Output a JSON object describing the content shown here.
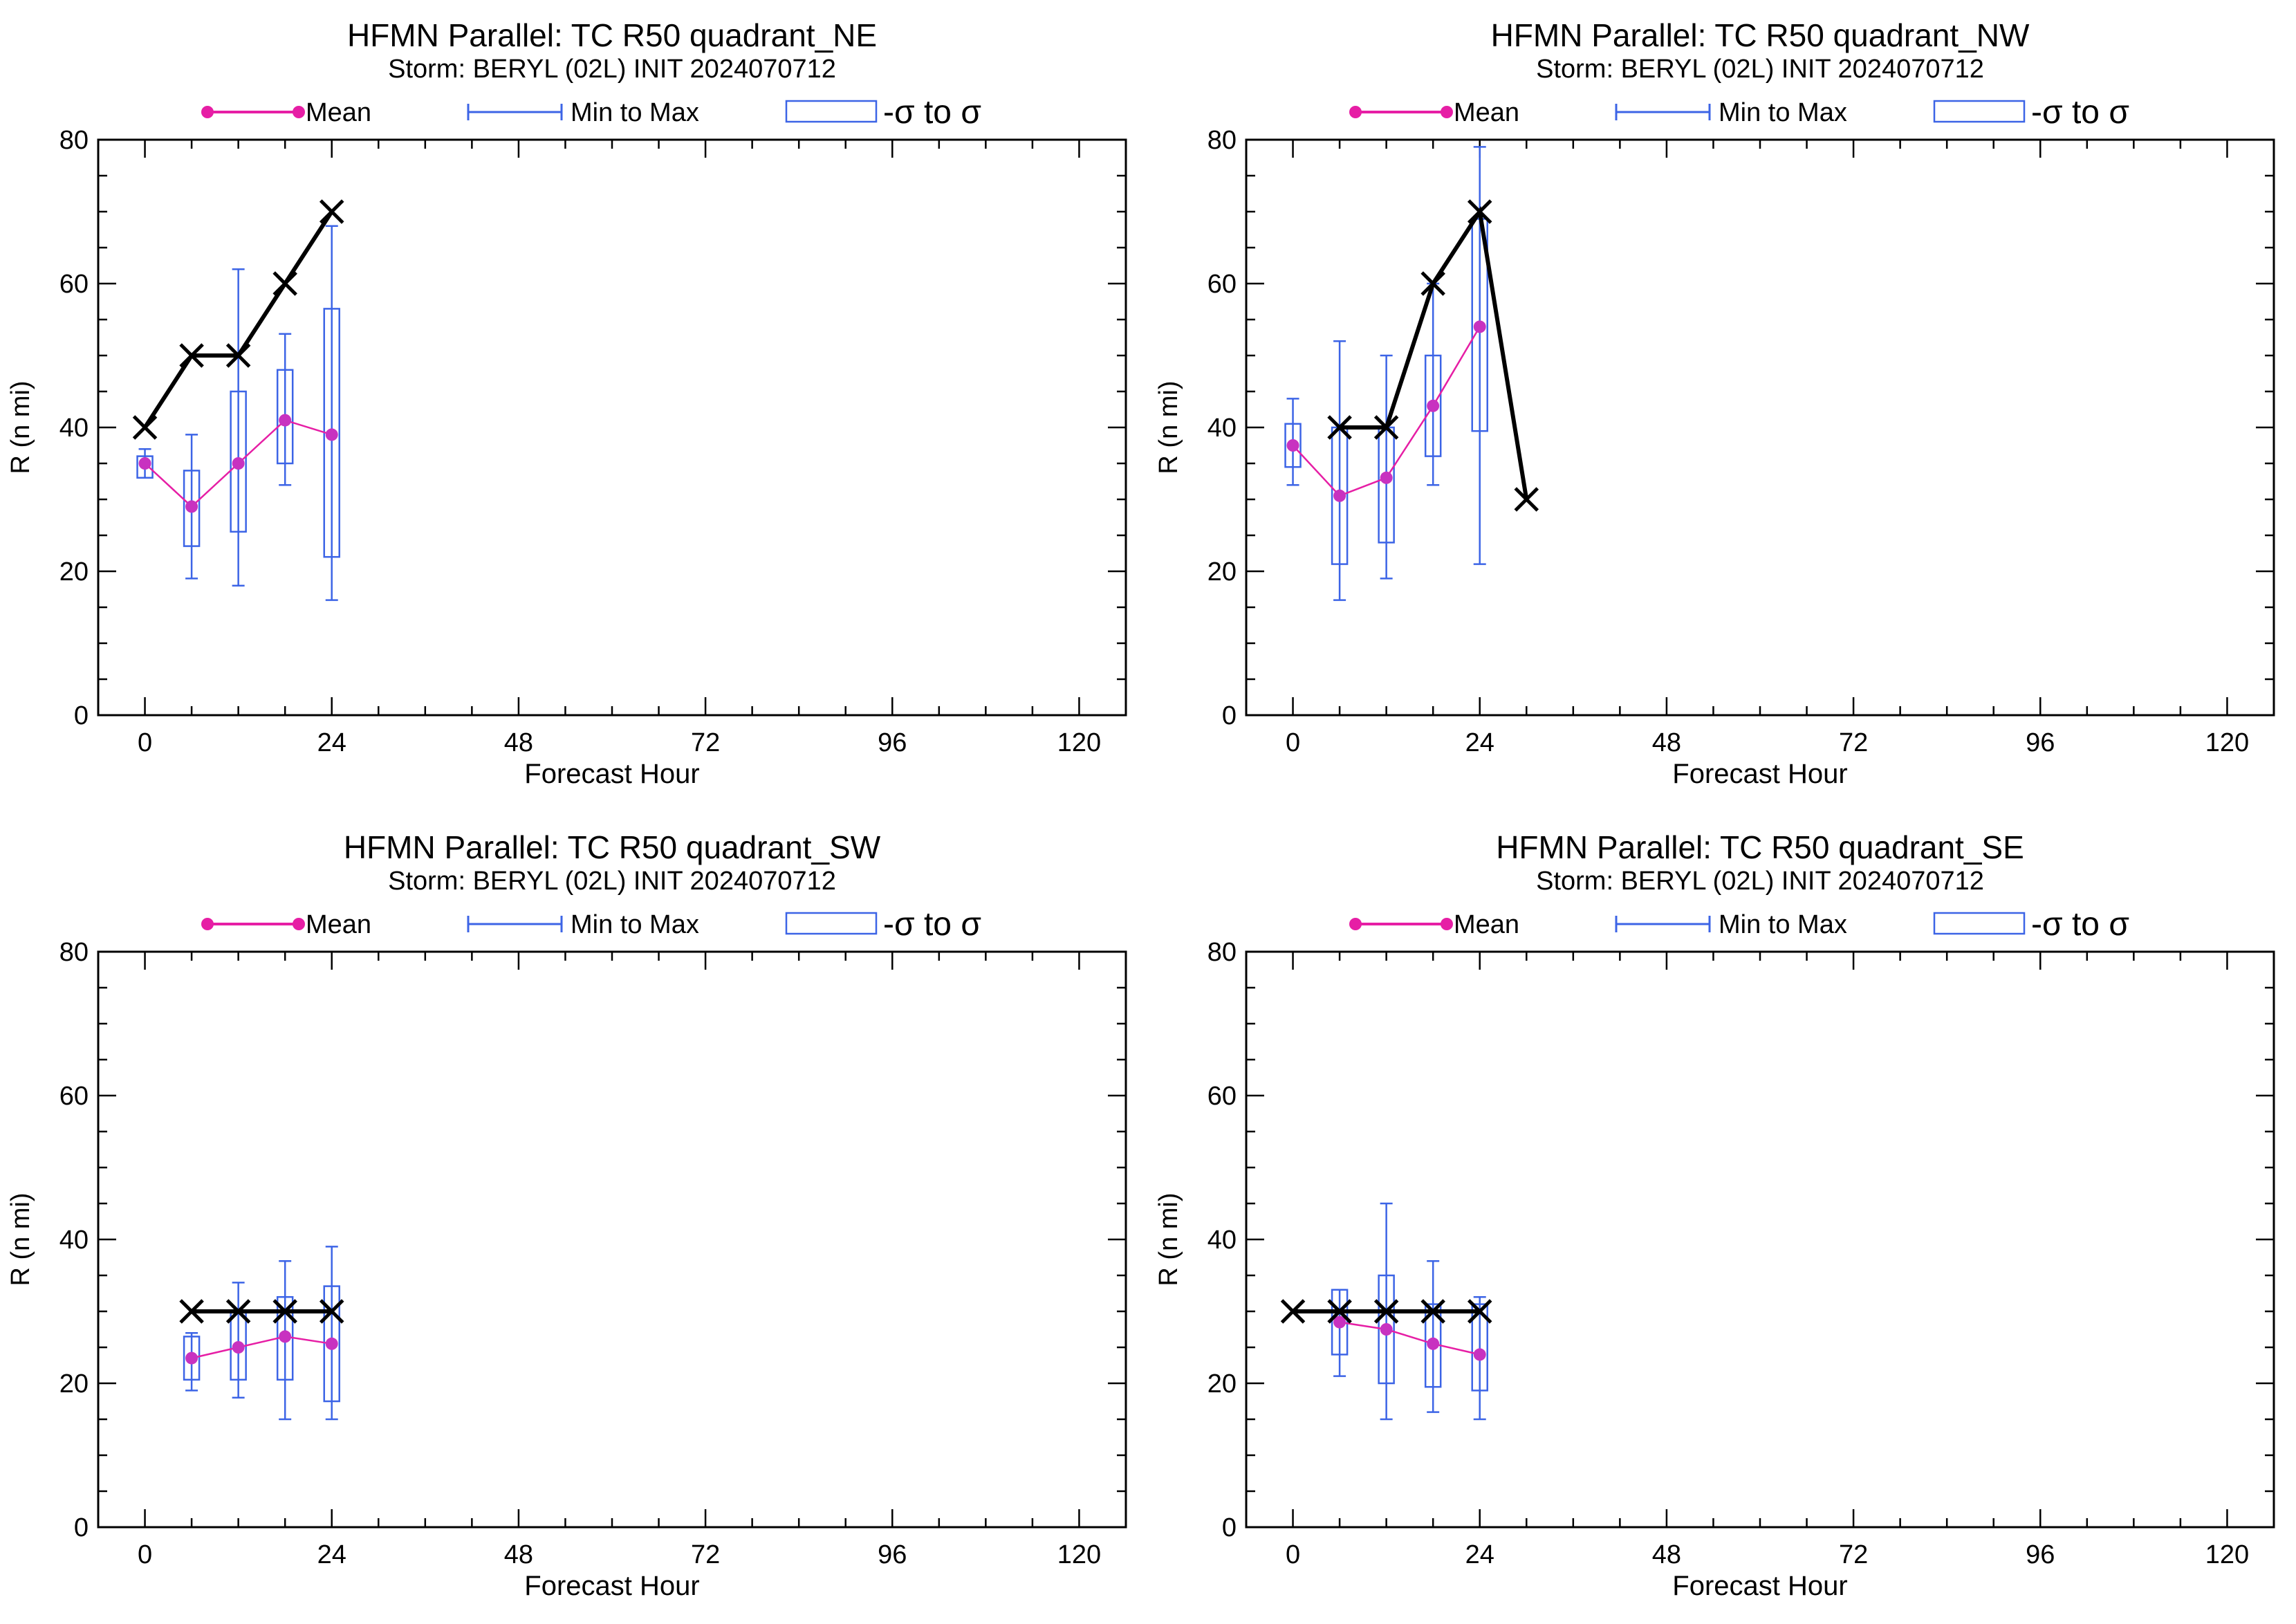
{
  "figure": {
    "title_prefix": "HFMN Parallel: TC  R50 quadrant_",
    "subtitle": "Storm: BERYL (02L) INIT 2024070712",
    "legend": {
      "mean_label": "Mean",
      "minmax_label": "Min to Max",
      "sigma_label": "-σ to σ"
    },
    "colors": {
      "mean": "#e61ea5",
      "mean_marker": "#c832c0",
      "spread": "#3c64e6",
      "observed": "#000000"
    }
  },
  "chart_data": [
    {
      "type": "line",
      "title": "HFMN Parallel: TC  R50 quadrant_NE",
      "subtitle": "Storm: BERYL (02L) INIT 2024070712",
      "xlabel": "Forecast Hour",
      "ylabel": "R (n mi)",
      "xlim": [
        -6,
        126
      ],
      "ylim": [
        0,
        80
      ],
      "xticks": [
        0,
        24,
        48,
        72,
        96,
        120
      ],
      "yticks": [
        0,
        20,
        40,
        60,
        80
      ],
      "grid": false,
      "legend_position": "top",
      "observed": {
        "x": [
          0,
          6,
          12,
          18,
          24
        ],
        "y": [
          40,
          50,
          50,
          60,
          70
        ]
      },
      "mean": {
        "x": [
          0,
          6,
          12,
          18,
          24
        ],
        "y": [
          35,
          29,
          35,
          41,
          39
        ]
      },
      "spread": [
        {
          "x": 0,
          "min": 33,
          "max": 37,
          "sigma_low": 33,
          "sigma_high": 36
        },
        {
          "x": 6,
          "min": 19,
          "max": 39,
          "sigma_low": 23.5,
          "sigma_high": 34
        },
        {
          "x": 12,
          "min": 18,
          "max": 62,
          "sigma_low": 25.5,
          "sigma_high": 45
        },
        {
          "x": 18,
          "min": 32,
          "max": 53,
          "sigma_low": 35,
          "sigma_high": 48
        },
        {
          "x": 24,
          "min": 16,
          "max": 68,
          "sigma_low": 22,
          "sigma_high": 56.5
        }
      ]
    },
    {
      "type": "line",
      "title": "HFMN Parallel: TC  R50 quadrant_NW",
      "subtitle": "Storm: BERYL (02L) INIT 2024070712",
      "xlabel": "Forecast Hour",
      "ylabel": "R (n mi)",
      "xlim": [
        -6,
        126
      ],
      "ylim": [
        0,
        80
      ],
      "xticks": [
        0,
        24,
        48,
        72,
        96,
        120
      ],
      "yticks": [
        0,
        20,
        40,
        60,
        80
      ],
      "grid": false,
      "legend_position": "top",
      "observed": {
        "x": [
          6,
          12,
          18,
          24,
          30
        ],
        "y": [
          40,
          40,
          60,
          70,
          30
        ]
      },
      "mean": {
        "x": [
          0,
          6,
          12,
          18,
          24
        ],
        "y": [
          37.5,
          30.5,
          33,
          43,
          54
        ]
      },
      "spread": [
        {
          "x": 0,
          "min": 32,
          "max": 44,
          "sigma_low": 34.5,
          "sigma_high": 40.5
        },
        {
          "x": 6,
          "min": 16,
          "max": 52,
          "sigma_low": 21,
          "sigma_high": 40
        },
        {
          "x": 12,
          "min": 19,
          "max": 50,
          "sigma_low": 24,
          "sigma_high": 40
        },
        {
          "x": 18,
          "min": 32,
          "max": 60,
          "sigma_low": 36,
          "sigma_high": 50
        },
        {
          "x": 24,
          "min": 21,
          "max": 79,
          "sigma_low": 39.5,
          "sigma_high": 69
        }
      ]
    },
    {
      "type": "line",
      "title": "HFMN Parallel: TC  R50 quadrant_SW",
      "subtitle": "Storm: BERYL (02L) INIT 2024070712",
      "xlabel": "Forecast Hour",
      "ylabel": "R (n mi)",
      "xlim": [
        -6,
        126
      ],
      "ylim": [
        0,
        80
      ],
      "xticks": [
        0,
        24,
        48,
        72,
        96,
        120
      ],
      "yticks": [
        0,
        20,
        40,
        60,
        80
      ],
      "grid": false,
      "legend_position": "top",
      "observed": {
        "x": [
          6,
          12,
          18,
          24
        ],
        "y": [
          30,
          30,
          30,
          30
        ]
      },
      "mean": {
        "x": [
          6,
          12,
          18,
          24
        ],
        "y": [
          23.5,
          25,
          26.5,
          25.5
        ]
      },
      "spread": [
        {
          "x": 6,
          "min": 19,
          "max": 27,
          "sigma_low": 20.5,
          "sigma_high": 26.5
        },
        {
          "x": 12,
          "min": 18,
          "max": 34,
          "sigma_low": 20.5,
          "sigma_high": 30
        },
        {
          "x": 18,
          "min": 15,
          "max": 37,
          "sigma_low": 20.5,
          "sigma_high": 32
        },
        {
          "x": 24,
          "min": 15,
          "max": 39,
          "sigma_low": 17.5,
          "sigma_high": 33.5
        }
      ]
    },
    {
      "type": "line",
      "title": "HFMN Parallel: TC  R50 quadrant_SE",
      "subtitle": "Storm: BERYL (02L) INIT 2024070712",
      "xlabel": "Forecast Hour",
      "ylabel": "R (n mi)",
      "xlim": [
        -6,
        126
      ],
      "ylim": [
        0,
        80
      ],
      "xticks": [
        0,
        24,
        48,
        72,
        96,
        120
      ],
      "yticks": [
        0,
        20,
        40,
        60,
        80
      ],
      "grid": false,
      "legend_position": "top",
      "observed": {
        "x": [
          0,
          6,
          12,
          18,
          24
        ],
        "y": [
          30,
          30,
          30,
          30,
          30
        ]
      },
      "mean": {
        "x": [
          6,
          12,
          18,
          24
        ],
        "y": [
          28.5,
          27.5,
          25.5,
          24
        ]
      },
      "spread": [
        {
          "x": 6,
          "min": 21,
          "max": 33,
          "sigma_low": 24,
          "sigma_high": 33
        },
        {
          "x": 12,
          "min": 15,
          "max": 45,
          "sigma_low": 20,
          "sigma_high": 35
        },
        {
          "x": 18,
          "min": 16,
          "max": 37,
          "sigma_low": 19.5,
          "sigma_high": 31
        },
        {
          "x": 24,
          "min": 15,
          "max": 32,
          "sigma_low": 19,
          "sigma_high": 31
        }
      ]
    }
  ]
}
